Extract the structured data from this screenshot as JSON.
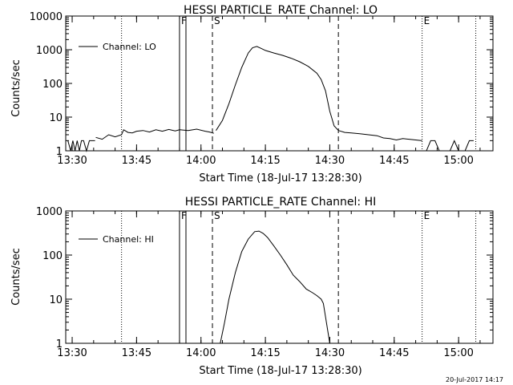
{
  "footer": {
    "timestamp": "20-Jul-2017 14:17"
  },
  "colors": {
    "line": "#000000",
    "background": "#ffffff"
  },
  "chart_data": [
    {
      "type": "line",
      "title": "HESSI PARTICLE_RATE Channel: LO",
      "xlabel": "Start Time (18-Jul-17 13:28:30)",
      "ylabel": "Counts/sec",
      "yscale": "log",
      "xlim": [
        "13:28:30",
        "15:08:00"
      ],
      "ylim": [
        1,
        10000
      ],
      "xticks": [
        "13:30",
        "13:45",
        "14:00",
        "14:15",
        "14:30",
        "14:45",
        "15:00"
      ],
      "yticks": [
        "1",
        "10",
        "100",
        "1000",
        "10000"
      ],
      "legend": {
        "label": "Channel: LO",
        "position": "top-left"
      },
      "markers": [
        {
          "label": "F",
          "time": "13:55:00",
          "style": "solid"
        },
        {
          "label": "",
          "time": "13:56:30",
          "style": "solid"
        },
        {
          "label": "S",
          "time": "14:02:40",
          "style": "dashed"
        },
        {
          "label": "",
          "time": "14:32:00",
          "style": "dashed"
        },
        {
          "label": "E",
          "time": "14:51:30",
          "style": "dotted"
        },
        {
          "label": "",
          "time": "13:41:30",
          "style": "dotted"
        },
        {
          "label": "",
          "time": "15:04:00",
          "style": "dotted"
        }
      ],
      "series": [
        {
          "name": "Channel: LO",
          "segments": [
            {
              "x": [
                "13:29:00",
                "13:29:40",
                "13:30:10",
                "13:30:40",
                "13:31:10",
                "13:31:40",
                "13:32:10",
                "13:32:40",
                "13:33:20",
                "13:34:00",
                "13:34:40",
                "13:35:20"
              ],
              "y": [
                2.0,
                1.0,
                2.0,
                1.0,
                2.0,
                1.0,
                2.0,
                2.0,
                1.0,
                2.0,
                2.0,
                2.0
              ]
            },
            {
              "x": [
                "13:35:30",
                "13:37:00",
                "13:38:30",
                "13:40:00",
                "13:41:30",
                "13:42:00",
                "13:43:00",
                "13:44:00",
                "13:45:00",
                "13:46:30",
                "13:48:00",
                "13:49:30",
                "13:51:00",
                "13:52:30",
                "13:54:00",
                "13:55:00",
                "13:57:00",
                "13:59:00",
                "14:01:00",
                "14:02:00",
                "14:03:00"
              ],
              "y": [
                2.5,
                2.2,
                3.0,
                2.6,
                3.0,
                4.2,
                3.5,
                3.4,
                3.8,
                4.0,
                3.6,
                4.2,
                3.8,
                4.3,
                3.9,
                4.2,
                4.0,
                4.4,
                3.8,
                3.6,
                3.3
              ]
            },
            {
              "x": [
                "14:03:30",
                "14:05:00",
                "14:06:30",
                "14:08:00",
                "14:09:30",
                "14:11:00",
                "14:12:00",
                "14:13:00",
                "14:14:00",
                "14:15:00",
                "14:17:00",
                "14:19:00",
                "14:21:00",
                "14:23:00",
                "14:25:00",
                "14:27:00",
                "14:28:00",
                "14:29:00",
                "14:30:00",
                "14:31:00",
                "14:32:00"
              ],
              "y": [
                4.0,
                8.0,
                25,
                90,
                300,
                800,
                1150,
                1250,
                1100,
                950,
                800,
                680,
                560,
                440,
                320,
                200,
                130,
                60,
                15,
                5.5,
                4.0
              ]
            },
            {
              "x": [
                "14:32:00",
                "14:33:30",
                "14:35:00",
                "14:37:00",
                "14:39:00",
                "14:41:00",
                "14:42:30",
                "14:44:00",
                "14:45:30",
                "14:47:00",
                "14:48:30",
                "14:50:00",
                "14:51:30"
              ],
              "y": [
                4.0,
                3.5,
                3.4,
                3.2,
                3.0,
                2.8,
                2.4,
                2.3,
                2.1,
                2.3,
                2.2,
                2.1,
                2.0
              ]
            },
            {
              "x": [
                "14:51:30",
                "14:52:30",
                "14:53:30",
                "14:54:30",
                "14:55:30",
                "14:58:00",
                "14:59:00",
                "15:00:00",
                "15:01:30",
                "15:02:30",
                "15:03:30"
              ],
              "y": [
                1.0,
                1.0,
                2.0,
                2.0,
                1.0,
                1.0,
                2.0,
                1.0,
                1.0,
                2.0,
                2.0
              ]
            }
          ]
        }
      ]
    },
    {
      "type": "line",
      "title": "HESSI PARTICLE_RATE Channel: HI",
      "xlabel": "Start Time (18-Jul-17 13:28:30)",
      "ylabel": "Counts/sec",
      "yscale": "log",
      "xlim": [
        "13:28:30",
        "15:08:00"
      ],
      "ylim": [
        1,
        1000
      ],
      "xticks": [
        "13:30",
        "13:45",
        "14:00",
        "14:15",
        "14:30",
        "14:45",
        "15:00"
      ],
      "yticks": [
        "1",
        "10",
        "100",
        "1000"
      ],
      "legend": {
        "label": "Channel: HI",
        "position": "top-left"
      },
      "markers": [
        {
          "label": "F",
          "time": "13:55:00",
          "style": "solid"
        },
        {
          "label": "",
          "time": "13:56:30",
          "style": "solid"
        },
        {
          "label": "S",
          "time": "14:02:40",
          "style": "dashed"
        },
        {
          "label": "",
          "time": "14:32:00",
          "style": "dashed"
        },
        {
          "label": "E",
          "time": "14:51:30",
          "style": "dotted"
        },
        {
          "label": "",
          "time": "13:41:30",
          "style": "dotted"
        },
        {
          "label": "",
          "time": "15:04:00",
          "style": "dotted"
        }
      ],
      "series": [
        {
          "name": "Channel: HI",
          "segments": [
            {
              "x": [
                "14:04:30",
                "14:05:30",
                "14:06:30",
                "14:08:00",
                "14:09:30",
                "14:11:00",
                "14:12:30",
                "14:13:30",
                "14:14:30",
                "14:15:30",
                "14:17:00",
                "14:18:30",
                "14:20:00",
                "14:21:30",
                "14:23:00",
                "14:24:30",
                "14:26:00",
                "14:27:00",
                "14:28:00",
                "14:28:30",
                "14:29:00",
                "14:30:00"
              ],
              "y": [
                1.0,
                3.0,
                10,
                40,
                120,
                230,
                340,
                350,
                310,
                250,
                160,
                100,
                60,
                35,
                25,
                17,
                14,
                12,
                10,
                8,
                4,
                1.0
              ]
            }
          ]
        }
      ]
    }
  ]
}
